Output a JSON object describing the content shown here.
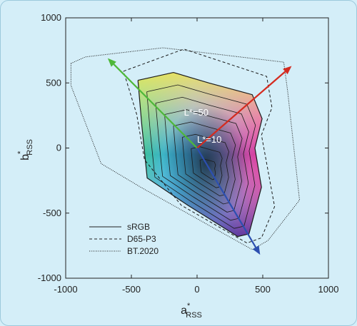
{
  "chart_data": {
    "type": "line",
    "title": "",
    "xlabel": {
      "main": "a",
      "sup": "*",
      "sub": "RSS"
    },
    "ylabel": {
      "main": "b",
      "sup": "*",
      "sub": "RSS"
    },
    "xlim": [
      -1000,
      1000
    ],
    "ylim": [
      -1000,
      1000
    ],
    "xticks": [
      -1000,
      -500,
      0,
      500,
      1000
    ],
    "yticks": [
      -1000,
      -500,
      0,
      500,
      1000
    ],
    "grid": false,
    "legend_position": "bottom-left",
    "series": [
      {
        "name": "sRGB",
        "style": "solid",
        "points": [
          [
            -450,
            520
          ],
          [
            -180,
            580
          ],
          [
            90,
            500
          ],
          [
            420,
            410
          ],
          [
            495,
            225
          ],
          [
            440,
            0
          ],
          [
            490,
            -300
          ],
          [
            395,
            -660
          ],
          [
            310,
            -680
          ],
          [
            -70,
            -440
          ],
          [
            -380,
            -230
          ],
          [
            -420,
            170
          ],
          [
            -450,
            520
          ]
        ]
      },
      {
        "name": "D65-P3",
        "style": "dashed",
        "points": [
          [
            -560,
            590
          ],
          [
            -100,
            760
          ],
          [
            530,
            550
          ],
          [
            570,
            310
          ],
          [
            490,
            100
          ],
          [
            590,
            -450
          ],
          [
            490,
            -690
          ],
          [
            380,
            -730
          ],
          [
            -120,
            -440
          ],
          [
            -400,
            -90
          ],
          [
            -460,
            260
          ],
          [
            -560,
            590
          ]
        ]
      },
      {
        "name": "BT.2020",
        "style": "dotted",
        "points": [
          [
            -960,
            650
          ],
          [
            -850,
            700
          ],
          [
            -260,
            770
          ],
          [
            660,
            660
          ],
          [
            690,
            430
          ],
          [
            780,
            -400
          ],
          [
            540,
            -710
          ],
          [
            420,
            -780
          ],
          [
            -430,
            -300
          ],
          [
            -730,
            -120
          ],
          [
            -960,
            480
          ],
          [
            -960,
            650
          ]
        ]
      }
    ],
    "inner_contours_srgb": 7,
    "arrows": [
      {
        "color": "#4eb83a",
        "from": [
          0,
          0
        ],
        "to": [
          -680,
          690
        ]
      },
      {
        "color": "#d42b20",
        "from": [
          0,
          0
        ],
        "to": [
          720,
          630
        ]
      },
      {
        "color": "#2c4fb0",
        "from": [
          0,
          0
        ],
        "to": [
          480,
          -820
        ]
      }
    ],
    "annotations": [
      {
        "text": "L*=50",
        "x": -100,
        "y": 250
      },
      {
        "text": "L*=10",
        "x": 0,
        "y": 40
      }
    ],
    "colors": {
      "background": "#d4eef8",
      "arrow_green": "#4eb83a",
      "arrow_red": "#d42b20",
      "arrow_blue": "#2c4fb0"
    }
  }
}
